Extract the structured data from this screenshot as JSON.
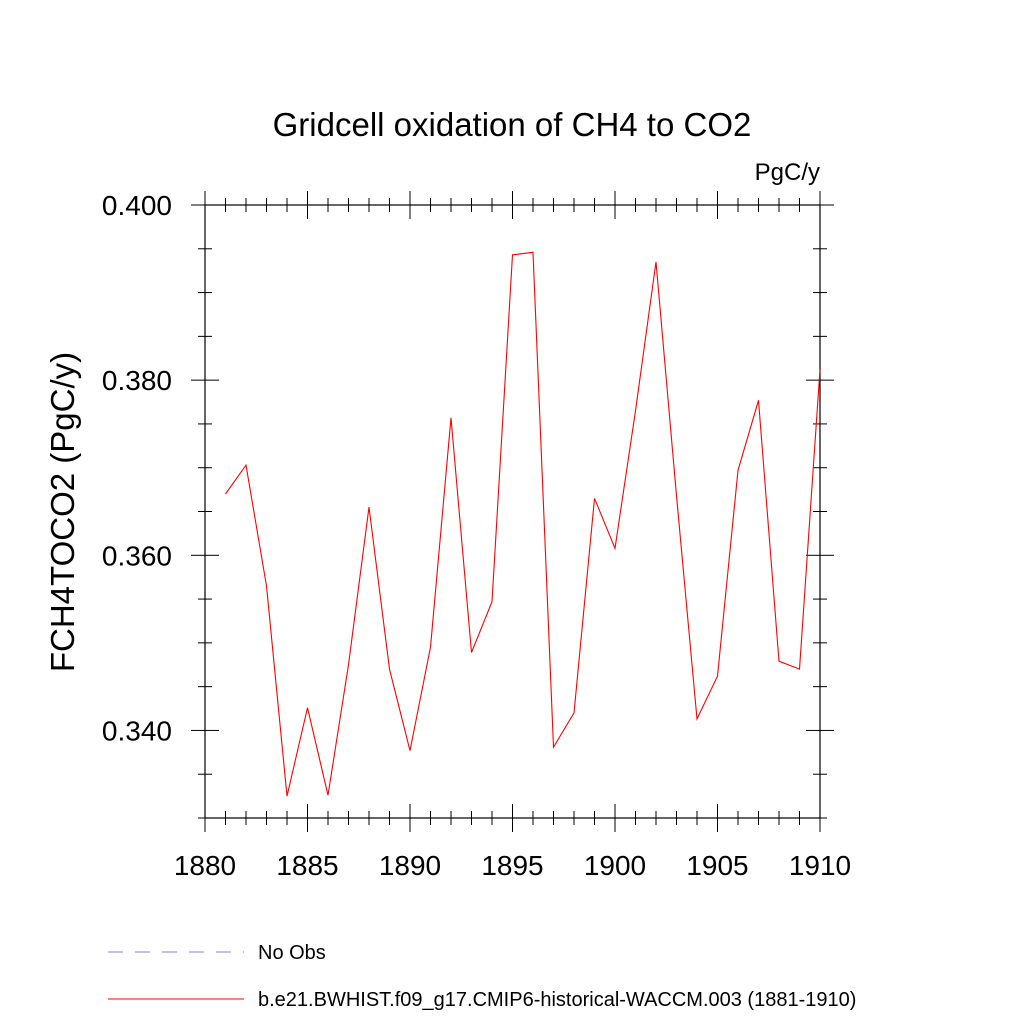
{
  "chart_data": {
    "type": "line",
    "title": "Gridcell oxidation of CH4 to CO2",
    "units_label": "PgC/y",
    "ylabel": "FCH4TOCO2  (PgC/y)",
    "xlabel": "",
    "xlim": [
      1880,
      1910
    ],
    "ylim": [
      0.33,
      0.4
    ],
    "x_major_ticks": [
      1880,
      1885,
      1890,
      1895,
      1900,
      1905,
      1910
    ],
    "x_tick_labels": [
      "1880",
      "1885",
      "1890",
      "1895",
      "1900",
      "1905",
      "1910"
    ],
    "y_major_ticks": [
      0.34,
      0.36,
      0.38,
      0.4
    ],
    "y_tick_labels": [
      "0.340",
      "0.360",
      "0.380",
      "0.400"
    ],
    "series": [
      {
        "name": "b.e21.BWHIST.f09_g17.CMIP6-historical-WACCM.003 (1881-1910)",
        "color": "#ff0000",
        "x": [
          1881,
          1882,
          1883,
          1884,
          1885,
          1886,
          1887,
          1888,
          1889,
          1890,
          1891,
          1892,
          1893,
          1894,
          1895,
          1896,
          1897,
          1898,
          1899,
          1900,
          1901,
          1902,
          1903,
          1904,
          1905,
          1906,
          1907,
          1908,
          1909,
          1910
        ],
        "y": [
          0.367,
          0.3703,
          0.3565,
          0.3325,
          0.3426,
          0.3326,
          0.3475,
          0.3655,
          0.347,
          0.3377,
          0.3495,
          0.3757,
          0.3489,
          0.3547,
          0.3943,
          0.3946,
          0.3381,
          0.342,
          0.3665,
          0.3608,
          0.3765,
          0.3935,
          0.3668,
          0.3413,
          0.3462,
          0.3697,
          0.3777,
          0.3479,
          0.347,
          0.3812
        ]
      }
    ],
    "legend": [
      {
        "label": "No Obs",
        "color": "#8a7fd0",
        "style": "dashed"
      },
      {
        "label": "b.e21.BWHIST.f09_g17.CMIP6-historical-WACCM.003 (1881-1910)",
        "color": "#ff0000",
        "style": "solid"
      }
    ]
  }
}
